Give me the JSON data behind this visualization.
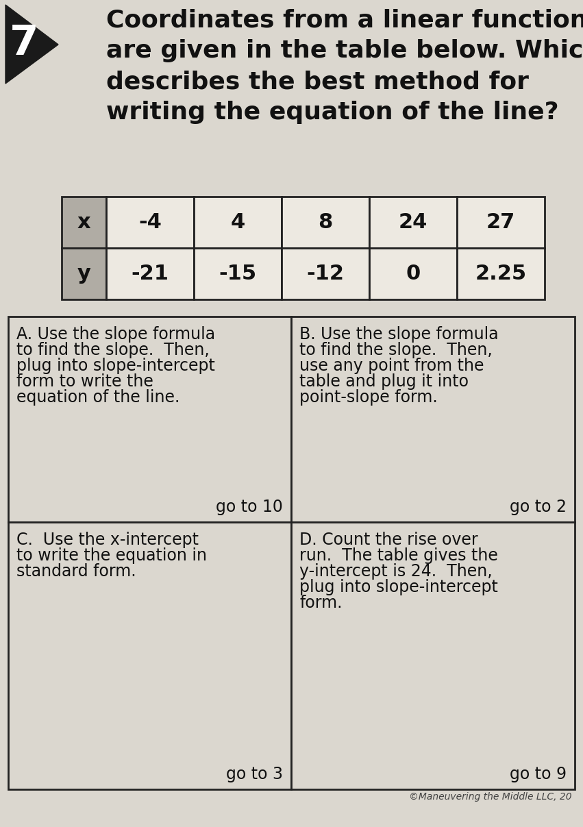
{
  "bg_color": "#dbd7cf",
  "title_lines": [
    "Coordinates from a linear function",
    "are given in the table below. Which",
    "describes the best method for",
    "writing the equation of the line?"
  ],
  "title_fontsize": 26,
  "number_label": "7",
  "table_x_labels": [
    "x",
    "-4",
    "4",
    "8",
    "24",
    "27"
  ],
  "table_y_labels": [
    "y",
    "-21",
    "-15",
    "-12",
    "0",
    "2.25"
  ],
  "table_header_bg": "#b0aca4",
  "table_cell_bg": "#ede9e1",
  "option_A_lines": [
    "A. Use the slope formula",
    "to find the slope.  Then,",
    "plug into slope-intercept",
    "form to write the",
    "equation of the line."
  ],
  "option_A_goto": "go to 10",
  "option_B_lines": [
    "B. Use the slope formula",
    "to find the slope.  Then,",
    "use any point from the",
    "table and plug it into",
    "point-slope form."
  ],
  "option_B_goto": "go to 2",
  "option_C_lines": [
    "C.  Use the x-intercept",
    "to write the equation in",
    "standard form."
  ],
  "option_C_goto": "go to 3",
  "option_D_lines": [
    "D. Count the rise over",
    "run.  The table gives the",
    "y-intercept is 24.  Then,",
    "plug into slope-intercept",
    "form."
  ],
  "option_D_goto": "go to 9",
  "copyright": "©Maneuvering the Middle LLC, 20",
  "option_fontsize": 17,
  "goto_fontsize": 17,
  "options_border_color": "#222222"
}
